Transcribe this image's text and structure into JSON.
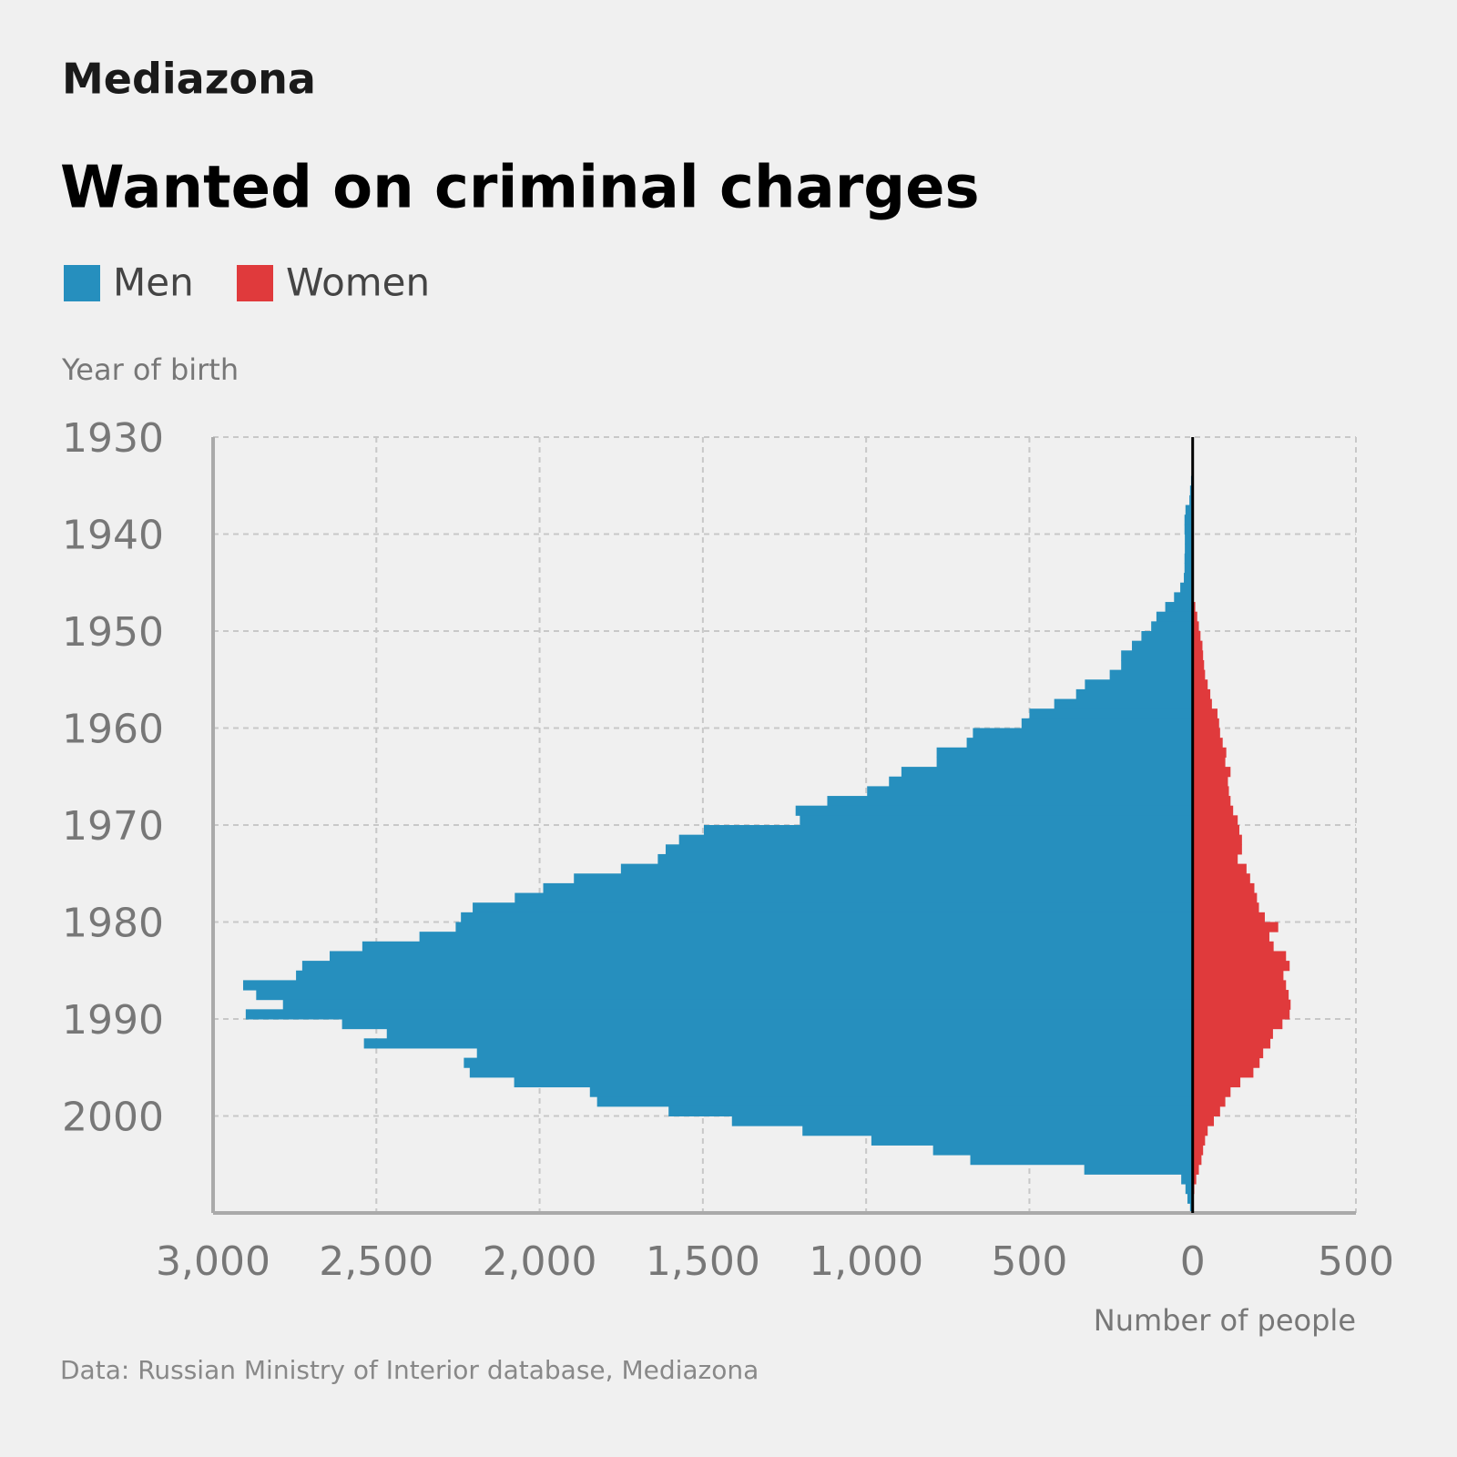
{
  "brand": "Mediazona",
  "chart_data": {
    "type": "pyramid",
    "title": "Wanted on criminal charges",
    "y_label": "Year of birth",
    "x_label": "Number of people",
    "source": "Data: Russian Ministry of Interior database, Mediazona",
    "y": [
      1930,
      1931,
      1932,
      1933,
      1934,
      1935,
      1936,
      1937,
      1938,
      1939,
      1940,
      1941,
      1942,
      1943,
      1944,
      1945,
      1946,
      1947,
      1948,
      1949,
      1950,
      1951,
      1952,
      1953,
      1954,
      1955,
      1956,
      1957,
      1958,
      1959,
      1960,
      1961,
      1962,
      1963,
      1964,
      1965,
      1966,
      1967,
      1968,
      1969,
      1970,
      1971,
      1972,
      1973,
      1974,
      1975,
      1976,
      1977,
      1978,
      1979,
      1980,
      1981,
      1982,
      1983,
      1984,
      1985,
      1986,
      1987,
      1988,
      1989,
      1990,
      1991,
      1992,
      1993,
      1994,
      1995,
      1996,
      1997,
      1998,
      1999,
      2000,
      2001,
      2002,
      2003,
      2004,
      2005,
      2006,
      2007,
      2008,
      2009
    ],
    "series": [
      {
        "name": "Men",
        "color": "#268fbe",
        "values": [
          -2,
          -2,
          -3,
          -3,
          -5,
          -8,
          -10,
          -22,
          -25,
          -25,
          -24,
          -24,
          -25,
          -25,
          -27,
          -38,
          -57,
          -84,
          -111,
          -127,
          -157,
          -186,
          -219,
          -219,
          -254,
          -330,
          -357,
          -424,
          -500,
          -524,
          -673,
          -692,
          -784,
          -784,
          -892,
          -930,
          -997,
          -1119,
          -1216,
          -1203,
          -1497,
          -1573,
          -1614,
          -1638,
          -1751,
          -1895,
          -1989,
          -2076,
          -2205,
          -2241,
          -2257,
          -2368,
          -2543,
          -2643,
          -2727,
          -2746,
          -2908,
          -2868,
          -2786,
          -2900,
          -2605,
          -2468,
          -2538,
          -2192,
          -2232,
          -2214,
          -2078,
          -1846,
          -1824,
          -1605,
          -1411,
          -1195,
          -984,
          -795,
          -681,
          -332,
          -35,
          -22,
          -16,
          -8
        ]
      },
      {
        "name": "Women",
        "color": "#e03a3c",
        "values": [
          0,
          0,
          0,
          0,
          0,
          0,
          0,
          0,
          0,
          0,
          0,
          0,
          0,
          0,
          0,
          0,
          0,
          8,
          14,
          19,
          24,
          30,
          32,
          35,
          38,
          46,
          54,
          59,
          76,
          81,
          84,
          92,
          103,
          100,
          116,
          108,
          111,
          116,
          124,
          138,
          143,
          151,
          151,
          138,
          165,
          176,
          189,
          197,
          203,
          221,
          262,
          235,
          248,
          286,
          297,
          278,
          286,
          294,
          300,
          297,
          275,
          246,
          238,
          216,
          205,
          186,
          146,
          116,
          100,
          84,
          65,
          46,
          38,
          32,
          27,
          19,
          11,
          5,
          3,
          0
        ]
      }
    ],
    "xlim": [
      -3000,
      500
    ],
    "xticks": [
      {
        "value": -3000,
        "label": "3,000"
      },
      {
        "value": -2500,
        "label": "2,500"
      },
      {
        "value": -2000,
        "label": "2,000"
      },
      {
        "value": -1500,
        "label": "1,500"
      },
      {
        "value": -1000,
        "label": "1,000"
      },
      {
        "value": -500,
        "label": "500"
      },
      0,
      500
    ],
    "ylim": [
      1930,
      2010
    ],
    "yticks": [
      1930,
      1940,
      1950,
      1960,
      1970,
      1980,
      1990,
      2000
    ],
    "grid": true
  }
}
